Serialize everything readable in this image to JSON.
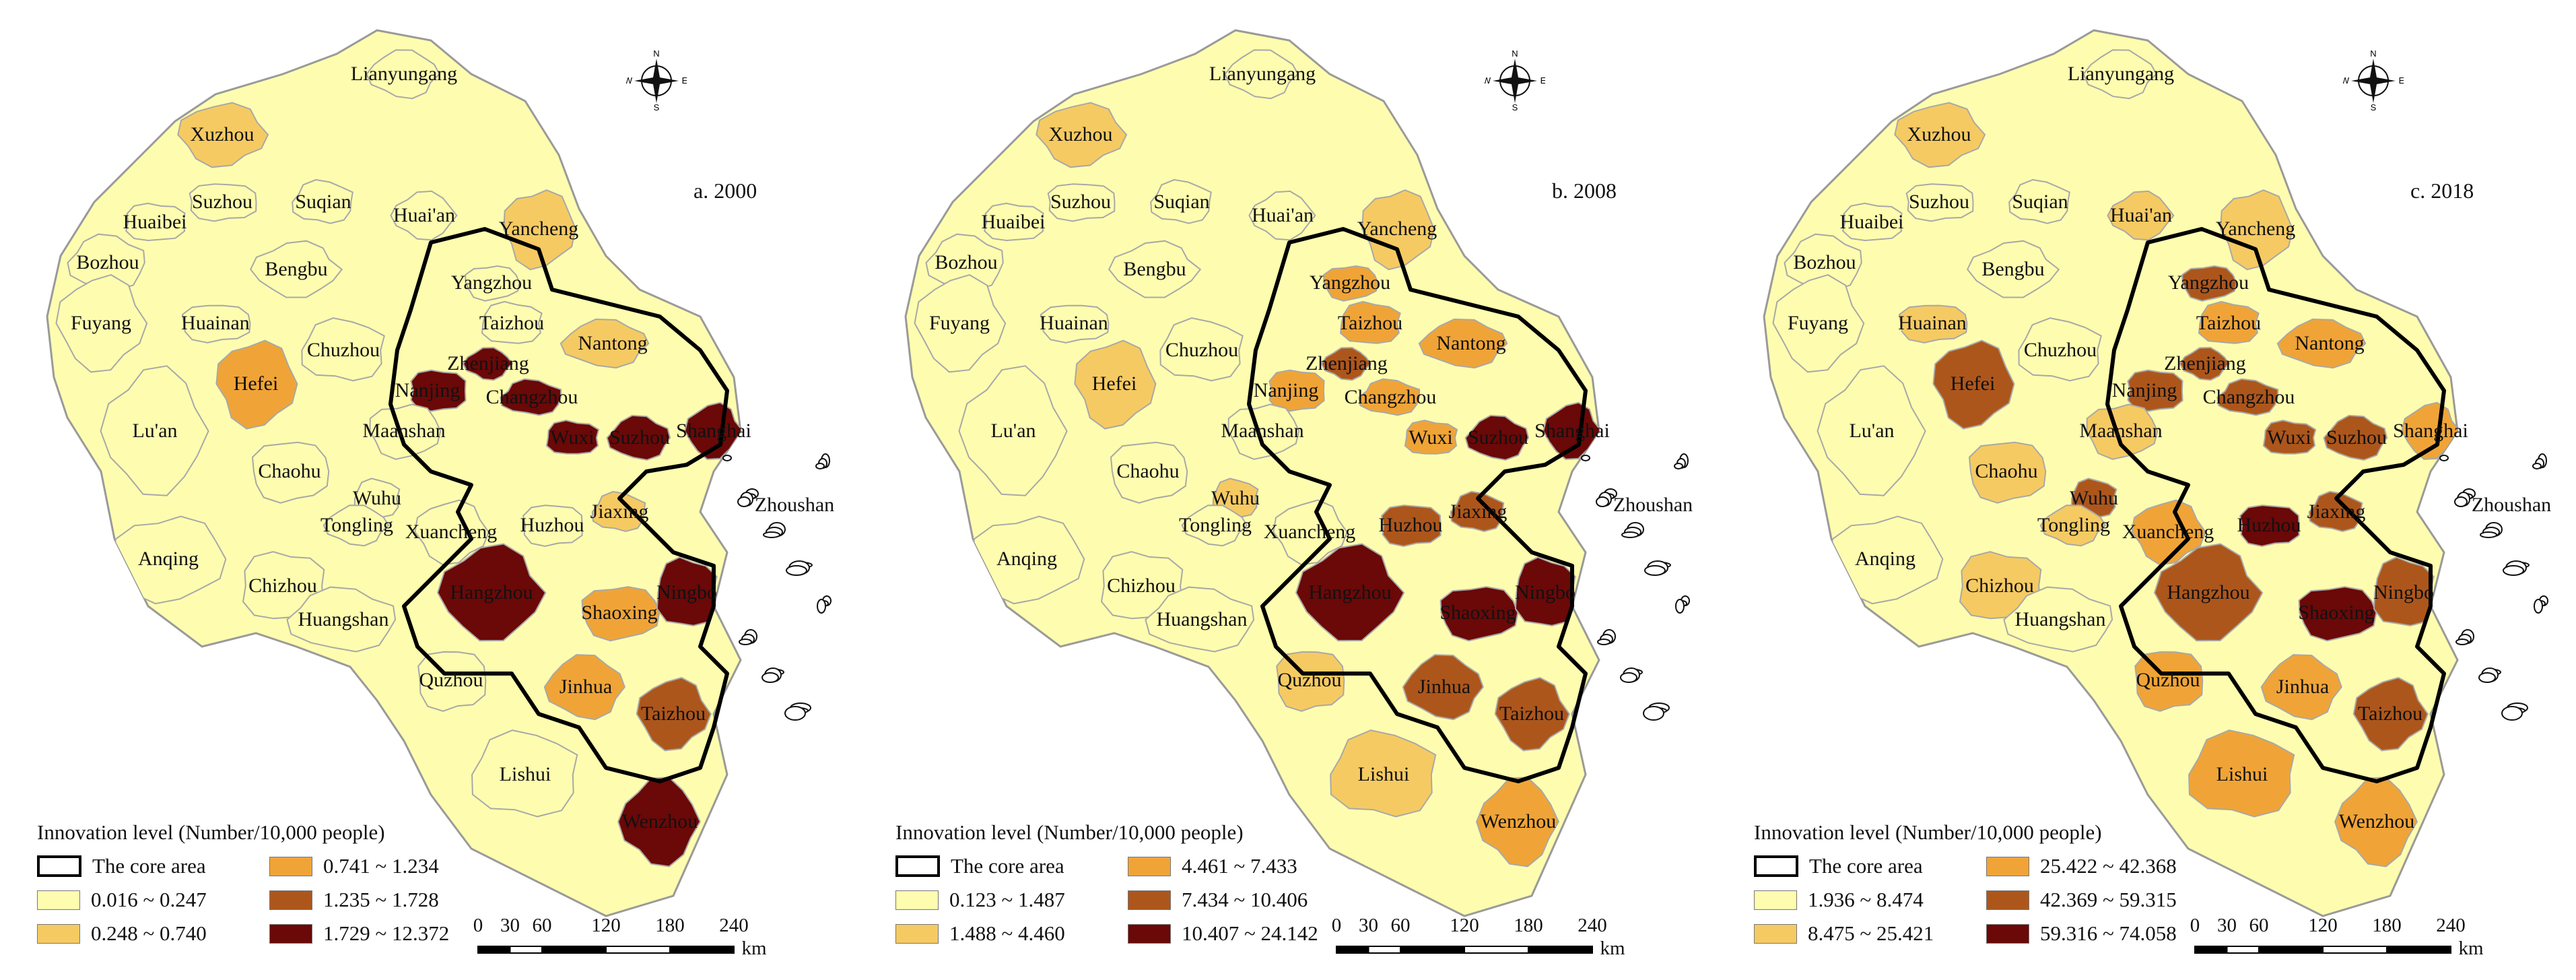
{
  "legend": {
    "title": "Innovation level (Number/10,000 people)",
    "core_label": "The core area"
  },
  "scale_bar": {
    "ticks": [
      "0",
      "30",
      "60",
      "120",
      "180",
      "240"
    ],
    "unit": "km"
  },
  "compass": {
    "n": "N",
    "s": "S",
    "e": "E",
    "w": "W"
  },
  "cities": [
    "Lianyungang",
    "Xuzhou",
    "Suzhou",
    "Suqian",
    "Huai'an",
    "Yancheng",
    "Huaibei",
    "Bozhou",
    "Bengbu",
    "Yangzhou",
    "Taizhou",
    "Nantong",
    "Fuyang",
    "Huainan",
    "Chuzhou",
    "Zhenjiang",
    "Hefei",
    "Nanjing",
    "Changzhou",
    "Lu'an",
    "Maanshan",
    "Wuxi",
    "Suzhou",
    "Shanghai",
    "Chaohu",
    "Wuhu",
    "Tongling",
    "Xuancheng",
    "Huzhou",
    "Jiaxing",
    "Zhoushan",
    "Anqing",
    "Chizhou",
    "Huangshan",
    "Hangzhou",
    "Shaoxing",
    "Ningbo",
    "Jinhua",
    "Taizhou",
    "Quzhou",
    "Lishui",
    "Wenzhou"
  ],
  "panels": [
    {
      "title": "a. 2000",
      "classes": [
        {
          "range": "0.016 ~ 0.247",
          "color": "#fefdaf"
        },
        {
          "range": "0.248 ~ 0.740",
          "color": "#f6ca62"
        },
        {
          "range": "0.741 ~ 1.234",
          "color": "#f0a437"
        },
        {
          "range": "1.235 ~ 1.728",
          "color": "#ad561c"
        },
        {
          "range": "1.729 ~ 12.372",
          "color": "#6b0808"
        }
      ],
      "city_class": [
        0,
        1,
        0,
        0,
        0,
        1,
        0,
        0,
        0,
        0,
        0,
        1,
        0,
        0,
        0,
        4,
        2,
        4,
        4,
        0,
        0,
        4,
        4,
        4,
        0,
        0,
        0,
        0,
        0,
        1,
        2,
        0,
        0,
        0,
        4,
        2,
        4,
        2,
        3,
        0,
        0,
        4
      ]
    },
    {
      "title": "b. 2008",
      "classes": [
        {
          "range": "0.123 ~ 1.487",
          "color": "#fefdaf"
        },
        {
          "range": "1.488 ~ 4.460",
          "color": "#f6ca62"
        },
        {
          "range": "4.461 ~ 7.433",
          "color": "#f0a437"
        },
        {
          "range": "7.434 ~ 10.406",
          "color": "#ad561c"
        },
        {
          "range": "10.407 ~ 24.142",
          "color": "#6b0808"
        }
      ],
      "city_class": [
        0,
        1,
        0,
        0,
        0,
        1,
        0,
        0,
        0,
        2,
        2,
        2,
        0,
        0,
        0,
        3,
        1,
        2,
        2,
        0,
        0,
        2,
        4,
        4,
        0,
        1,
        0,
        0,
        3,
        3,
        2,
        0,
        0,
        0,
        4,
        4,
        4,
        3,
        3,
        1,
        1,
        2
      ]
    },
    {
      "title": "c. 2018",
      "classes": [
        {
          "range": "1.936 ~ 8.474",
          "color": "#fefdaf"
        },
        {
          "range": "8.475 ~ 25.421",
          "color": "#f6ca62"
        },
        {
          "range": "25.422 ~ 42.368",
          "color": "#f0a437"
        },
        {
          "range": "42.369 ~ 59.315",
          "color": "#ad561c"
        },
        {
          "range": "59.316 ~ 74.058",
          "color": "#6b0808"
        }
      ],
      "city_class": [
        0,
        1,
        0,
        0,
        1,
        1,
        0,
        0,
        0,
        3,
        2,
        2,
        0,
        1,
        0,
        3,
        3,
        3,
        3,
        0,
        1,
        3,
        3,
        2,
        1,
        3,
        1,
        2,
        4,
        3,
        2,
        0,
        1,
        0,
        3,
        4,
        3,
        2,
        3,
        2,
        2,
        2
      ]
    }
  ]
}
